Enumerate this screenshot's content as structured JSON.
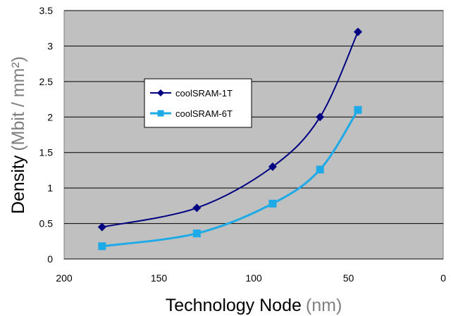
{
  "chart_data": {
    "type": "line",
    "title": "",
    "xlabel": {
      "main": "Technology Node",
      "unit": "(nm)"
    },
    "ylabel": {
      "main": "Density",
      "unit": "(Mbit / mm²)"
    },
    "xlim": [
      200,
      0
    ],
    "ylim": [
      0,
      3.5
    ],
    "x_reversed": true,
    "grid": "horizontal",
    "legend_position": "inside, upper-left",
    "xticks": [
      "200",
      "150",
      "100",
      "50",
      "0"
    ],
    "yticks": [
      "0",
      "0.5",
      "1",
      "1.5",
      "2",
      "2.5",
      "3",
      "3.5"
    ],
    "series": [
      {
        "name": "coolSRAM-1T",
        "marker": "diamond",
        "color": "#000080",
        "x": [
          180,
          130,
          90,
          65,
          45
        ],
        "y": [
          0.45,
          0.72,
          1.3,
          2.0,
          3.2
        ]
      },
      {
        "name": "coolSRAM-6T",
        "marker": "square",
        "color": "#1EAAE7",
        "x": [
          180,
          130,
          90,
          65,
          45
        ],
        "y": [
          0.18,
          0.36,
          0.78,
          1.26,
          2.1
        ]
      }
    ],
    "colors": {
      "plot_background": "#C0C0C0",
      "gridline": "#000000",
      "axis_title_unit": "#808080"
    }
  }
}
